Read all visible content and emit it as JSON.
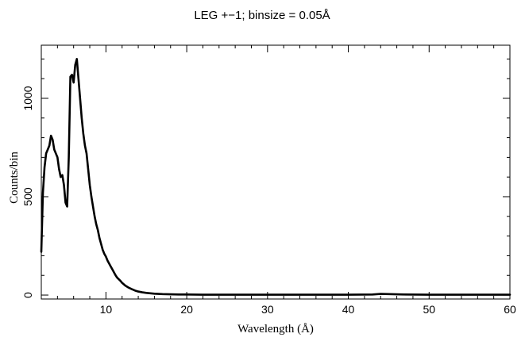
{
  "chart_data": {
    "type": "line",
    "title": "LEG +−1; binsize = 0.05Å",
    "xlabel": "Wavelength (Å)",
    "ylabel": "Counts/bin",
    "xlim": [
      2,
      60
    ],
    "ylim": [
      -20,
      1270
    ],
    "grid": false,
    "x_ticks": [
      10,
      20,
      30,
      40,
      50,
      60
    ],
    "x_tick_labels": [
      "10",
      "20",
      "30",
      "40",
      "50",
      "60"
    ],
    "y_ticks": [
      0,
      500,
      1000
    ],
    "y_tick_labels": [
      "0",
      "500",
      "1000"
    ],
    "line_color": "#000000",
    "series": [
      {
        "x": [
          2.0,
          2.2,
          2.4,
          2.6,
          2.8,
          3.0,
          3.2,
          3.4,
          3.6,
          3.8,
          4.0,
          4.2,
          4.4,
          4.6,
          4.8,
          5.0,
          5.2,
          5.4,
          5.6,
          5.8,
          6.0,
          6.2,
          6.4,
          6.6,
          6.8,
          7.0,
          7.2,
          7.4,
          7.6,
          7.8,
          8.0,
          8.2,
          8.4,
          8.6,
          8.8,
          9.0,
          9.2,
          9.4,
          9.6,
          9.8,
          10.0,
          10.2,
          10.4,
          10.6,
          10.8,
          11.0,
          11.2,
          11.4,
          11.6,
          11.8,
          12.0,
          12.4,
          12.8,
          13.2,
          13.6,
          14.0,
          14.5,
          15.0,
          15.5,
          16.0,
          17.0,
          18.0,
          19.0,
          20.0,
          22.0,
          25.0,
          30.0,
          35.0,
          40.0,
          43.0,
          44.0,
          45.0,
          47.0,
          50.0,
          55.0,
          60.0
        ],
        "values": [
          220,
          520,
          650,
          720,
          740,
          760,
          810,
          790,
          740,
          720,
          700,
          640,
          600,
          610,
          560,
          470,
          450,
          700,
          1110,
          1120,
          1080,
          1170,
          1200,
          1100,
          1000,
          900,
          820,
          760,
          720,
          640,
          560,
          500,
          450,
          400,
          360,
          330,
          290,
          260,
          230,
          210,
          195,
          175,
          160,
          145,
          130,
          115,
          100,
          88,
          80,
          72,
          62,
          48,
          38,
          30,
          23,
          18,
          14,
          11,
          9,
          7,
          5,
          4,
          3,
          3,
          2,
          2,
          2,
          2,
          2,
          3,
          6,
          5,
          3,
          2,
          2,
          2
        ]
      }
    ]
  }
}
